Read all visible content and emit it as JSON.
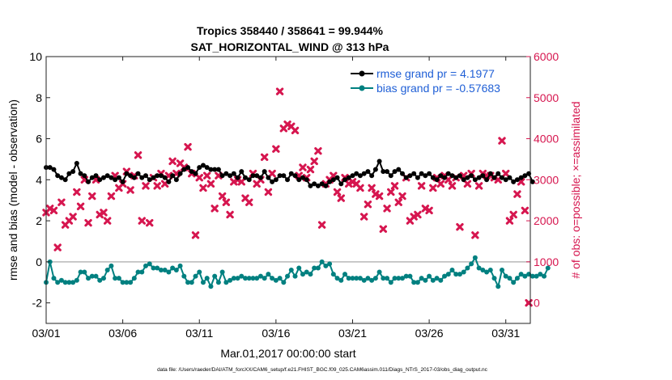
{
  "chart_data": {
    "type": "line",
    "title_line1": "Tropics 358440 / 358641 = 99.944%",
    "title_line2": "SAT_HORIZONTAL_WIND @ 313 hPa",
    "xlabel": "Mar.01,2017 00:00:00 start",
    "ylabel_left": "rmse and bias (model - observation)",
    "ylabel_right": "# of obs: o=possible; ×=assimilated",
    "footnote": "data file: /Users/raeder/DAI/ATM_forcXX/CAM6_setup/f.e21.FHIST_BGC.f09_025.CAM6assim.011/Diags_NTrS_2017-03/obs_diag_output.nc",
    "xlim": [
      0,
      31.6
    ],
    "ylim_left": [
      -3,
      10
    ],
    "ylim_right": [
      -500,
      6000
    ],
    "x_ticks": [
      {
        "x": 0,
        "label": "03/01"
      },
      {
        "x": 5,
        "label": "03/06"
      },
      {
        "x": 10,
        "label": "03/11"
      },
      {
        "x": 15,
        "label": "03/16"
      },
      {
        "x": 20,
        "label": "03/21"
      },
      {
        "x": 25,
        "label": "03/26"
      },
      {
        "x": 30,
        "label": "03/31"
      }
    ],
    "y_ticks_left": [
      "-2",
      "0",
      "2",
      "4",
      "6",
      "8",
      "10"
    ],
    "y_ticks_right": [
      "0",
      "1000",
      "2000",
      "3000",
      "4000",
      "5000",
      "6000"
    ],
    "zero_line": 0,
    "time_step_days": 0.25,
    "legend": [
      {
        "label": "rmse grand pr = 4.1977",
        "color": "#000000"
      },
      {
        "label": "bias grand pr = -0.57683",
        "color": "#008080"
      }
    ],
    "colors": {
      "rmse": "#000000",
      "bias": "#008080",
      "obs": "#d6164f",
      "legend_text": "#1f5fd6",
      "right_axis": "#d6164f",
      "zero_line": "#b8b8b8"
    },
    "series": [
      {
        "name": "rmse",
        "axis": "left",
        "x_start": 0,
        "values": [
          4.6,
          4.6,
          4.5,
          4.2,
          4.1,
          4.0,
          4.3,
          4.4,
          4.8,
          4.3,
          4.2,
          3.9,
          4.1,
          4.2,
          4.0,
          4.1,
          4.2,
          4.1,
          4.0,
          4.1,
          3.9,
          4.3,
          4.2,
          4.1,
          4.3,
          4.1,
          4.2,
          4.0,
          4.1,
          4.2,
          4.2,
          4.1,
          3.9,
          4.2,
          4.0,
          4.3,
          4.5,
          4.6,
          4.4,
          4.3,
          4.6,
          4.7,
          4.6,
          4.5,
          4.5,
          4.5,
          4.2,
          4.3,
          4.2,
          4.3,
          4.1,
          4.4,
          4.1,
          4.0,
          4.2,
          4.2,
          4.1,
          4.4,
          4.1,
          3.9,
          4.0,
          4.2,
          4.2,
          4.0,
          4.3,
          4.2,
          4.0,
          4.1,
          4.0,
          3.7,
          3.8,
          3.7,
          3.8,
          3.7,
          3.9,
          4.0,
          4.1,
          3.8,
          4.0,
          4.1,
          4.2,
          4.3,
          4.2,
          4.3,
          4.4,
          4.2,
          4.5,
          4.9,
          4.4,
          4.4,
          4.2,
          4.4,
          4.5,
          4.3,
          4.1,
          4.2,
          4.3,
          4.1,
          4.3,
          4.2,
          4.3,
          4.1,
          4.0,
          4.2,
          4.1,
          4.3,
          4.2,
          4.1,
          4.2,
          4.0,
          4.1,
          4.2,
          4.0,
          4.1,
          4.2,
          4.0,
          4.3,
          4.1,
          4.3,
          4.1,
          4.0,
          4.1,
          3.9,
          4.0,
          4.1,
          4.2,
          4.3,
          3.9
        ]
      },
      {
        "name": "bias",
        "axis": "left",
        "x_start": 0,
        "values": [
          -1.0,
          0.0,
          -0.8,
          -1.0,
          -0.9,
          -1.0,
          -1.0,
          -1.0,
          -0.9,
          -0.5,
          -0.5,
          -0.8,
          -0.7,
          -0.7,
          -0.9,
          -0.8,
          -0.4,
          -0.2,
          -0.8,
          -0.8,
          -1.0,
          -1.0,
          -1.0,
          -0.8,
          -0.5,
          -0.5,
          -0.2,
          -0.1,
          -0.3,
          -0.3,
          -0.4,
          -0.4,
          -0.5,
          -0.3,
          -0.4,
          -0.2,
          -0.7,
          -1.0,
          -1.0,
          -0.7,
          -0.5,
          -1.0,
          -0.8,
          -1.2,
          -0.7,
          -1.0,
          -0.5,
          -1.0,
          -0.9,
          -0.8,
          -0.8,
          -0.7,
          -0.8,
          -0.8,
          -0.8,
          -0.8,
          -0.7,
          -0.8,
          -0.6,
          -0.8,
          -0.9,
          -0.8,
          -1.0,
          -0.7,
          -0.4,
          -0.7,
          -0.3,
          -0.6,
          -0.5,
          -0.6,
          -0.3,
          -0.3,
          0.0,
          -0.2,
          -0.1,
          -0.6,
          -0.8,
          -0.9,
          -0.6,
          -0.8,
          -0.8,
          -0.8,
          -0.8,
          -0.9,
          -0.8,
          -0.9,
          -0.8,
          -0.5,
          -0.8,
          -0.8,
          -1.0,
          -0.8,
          -0.8,
          -0.8,
          -0.7,
          -0.7,
          -1.0,
          -1.0,
          -0.8,
          -0.9,
          -0.7,
          -0.9,
          -0.8,
          -0.9,
          -0.7,
          -0.6,
          -0.4,
          -0.6,
          -0.6,
          -0.5,
          -0.3,
          -0.1,
          0.2,
          -0.3,
          -0.4,
          -0.5,
          -0.4,
          -0.8,
          -1.2,
          -0.4,
          -0.7,
          -0.8,
          -1.0,
          -0.8,
          -0.6,
          -0.7,
          -0.6,
          -0.7,
          -0.7,
          -0.6,
          -0.7,
          -0.3
        ]
      },
      {
        "name": "obs_assimilated",
        "axis": "right",
        "marker": "x",
        "points": [
          [
            0.0,
            2200
          ],
          [
            0.25,
            2300
          ],
          [
            0.5,
            2250
          ],
          [
            0.75,
            1350
          ],
          [
            1.0,
            2450
          ],
          [
            1.25,
            1900
          ],
          [
            1.5,
            2000
          ],
          [
            1.75,
            2100
          ],
          [
            2.0,
            2700
          ],
          [
            2.25,
            2350
          ],
          [
            2.5,
            3000
          ],
          [
            2.75,
            1950
          ],
          [
            3.0,
            2600
          ],
          [
            3.25,
            3000
          ],
          [
            3.5,
            2150
          ],
          [
            3.75,
            2200
          ],
          [
            4.0,
            2000
          ],
          [
            4.25,
            2600
          ],
          [
            4.5,
            3100
          ],
          [
            4.75,
            2800
          ],
          [
            5.0,
            2900
          ],
          [
            5.25,
            3200
          ],
          [
            5.5,
            2750
          ],
          [
            5.75,
            3100
          ],
          [
            6.0,
            3600
          ],
          [
            6.25,
            2000
          ],
          [
            6.5,
            2850
          ],
          [
            6.75,
            1950
          ],
          [
            7.0,
            3050
          ],
          [
            7.25,
            2850
          ],
          [
            7.5,
            3150
          ],
          [
            7.75,
            2900
          ],
          [
            8.0,
            3100
          ],
          [
            8.25,
            3450
          ],
          [
            8.5,
            3150
          ],
          [
            8.75,
            3400
          ],
          [
            9.0,
            3300
          ],
          [
            9.25,
            3800
          ],
          [
            9.5,
            3150
          ],
          [
            9.75,
            1650
          ],
          [
            10.0,
            3050
          ],
          [
            10.25,
            2800
          ],
          [
            10.5,
            3100
          ],
          [
            10.75,
            2900
          ],
          [
            11.0,
            2300
          ],
          [
            11.25,
            3100
          ],
          [
            11.5,
            2600
          ],
          [
            11.75,
            2450
          ],
          [
            12.0,
            2150
          ],
          [
            12.25,
            2950
          ],
          [
            12.5,
            3000
          ],
          [
            12.75,
            2950
          ],
          [
            13.0,
            2550
          ],
          [
            13.25,
            2450
          ],
          [
            13.5,
            3150
          ],
          [
            13.75,
            2900
          ],
          [
            14.0,
            3000
          ],
          [
            14.25,
            3550
          ],
          [
            14.5,
            2700
          ],
          [
            14.75,
            3150
          ],
          [
            15.0,
            3750
          ],
          [
            15.25,
            5150
          ],
          [
            15.5,
            4250
          ],
          [
            15.75,
            4350
          ],
          [
            16.0,
            4300
          ],
          [
            16.25,
            4200
          ],
          [
            16.5,
            3100
          ],
          [
            16.75,
            3300
          ],
          [
            17.0,
            3050
          ],
          [
            17.25,
            3250
          ],
          [
            17.5,
            3450
          ],
          [
            17.75,
            3700
          ],
          [
            18.0,
            1900
          ],
          [
            18.25,
            2900
          ],
          [
            18.5,
            3000
          ],
          [
            18.75,
            3100
          ],
          [
            19.0,
            2700
          ],
          [
            19.25,
            2550
          ],
          [
            19.5,
            3050
          ],
          [
            19.75,
            2900
          ],
          [
            20.0,
            2950
          ],
          [
            20.25,
            2900
          ],
          [
            20.5,
            2800
          ],
          [
            20.75,
            2100
          ],
          [
            21.0,
            2400
          ],
          [
            21.25,
            2800
          ],
          [
            21.5,
            2650
          ],
          [
            21.75,
            2600
          ],
          [
            22.0,
            1800
          ],
          [
            22.25,
            2300
          ],
          [
            22.5,
            2700
          ],
          [
            22.75,
            2850
          ],
          [
            23.0,
            2450
          ],
          [
            23.25,
            2600
          ],
          [
            23.5,
            3050
          ],
          [
            23.75,
            2000
          ],
          [
            24.0,
            2100
          ],
          [
            24.25,
            2150
          ],
          [
            24.5,
            2850
          ],
          [
            24.75,
            2300
          ],
          [
            25.0,
            2250
          ],
          [
            25.25,
            2800
          ],
          [
            25.5,
            3050
          ],
          [
            25.75,
            2900
          ],
          [
            26.0,
            3100
          ],
          [
            26.25,
            3000
          ],
          [
            26.5,
            2850
          ],
          [
            26.75,
            3050
          ],
          [
            27.0,
            1850
          ],
          [
            27.25,
            3100
          ],
          [
            27.5,
            2900
          ],
          [
            27.75,
            3150
          ],
          [
            28.0,
            1650
          ],
          [
            28.25,
            2850
          ],
          [
            28.5,
            3150
          ],
          [
            28.75,
            3100
          ],
          [
            29.0,
            3100
          ],
          [
            29.25,
            3050
          ],
          [
            29.5,
            3000
          ],
          [
            29.75,
            3950
          ],
          [
            30.0,
            3150
          ],
          [
            30.25,
            2000
          ],
          [
            30.5,
            2150
          ],
          [
            30.75,
            2650
          ],
          [
            31.0,
            2950
          ],
          [
            31.25,
            2250
          ],
          [
            31.5,
            0
          ]
        ]
      }
    ]
  }
}
